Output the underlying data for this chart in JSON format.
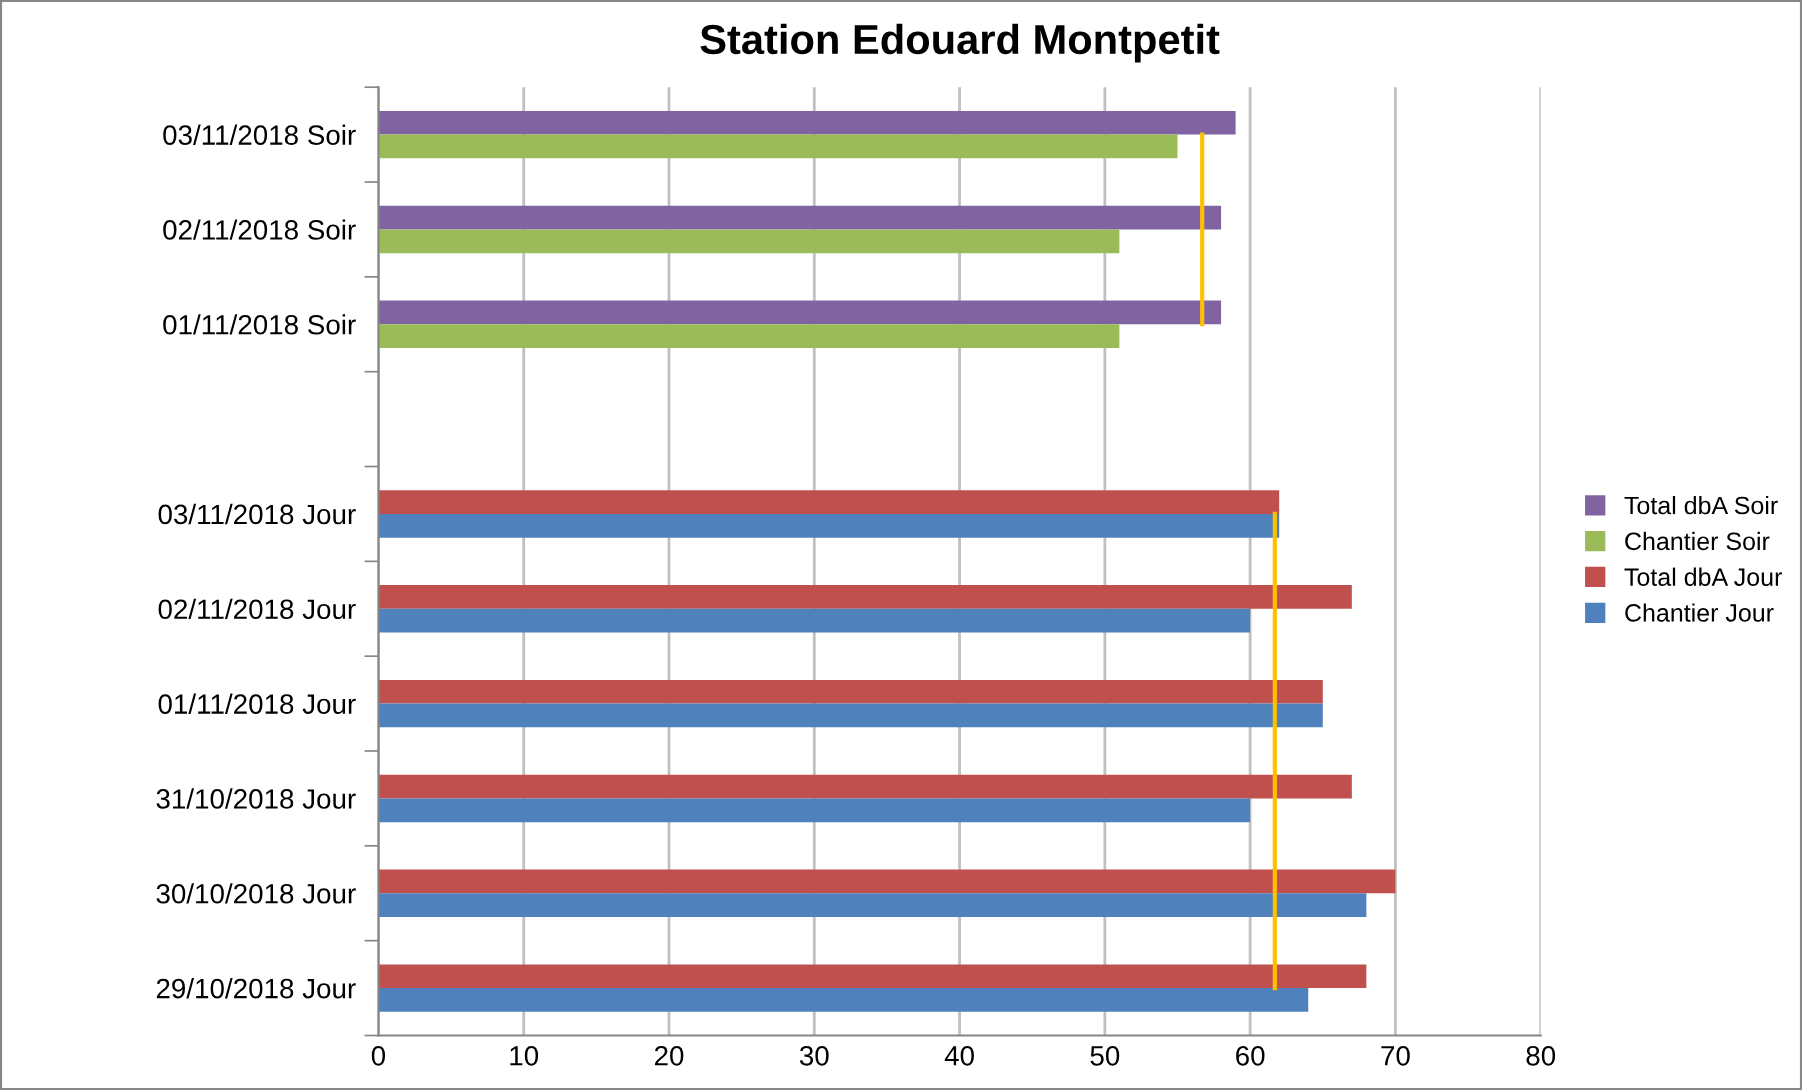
{
  "chart_data": {
    "type": "bar",
    "orientation": "horizontal",
    "title": "Station Edouard Montpetit",
    "categories": [
      "03/11/2018 Soir",
      "02/11/2018 Soir",
      "01/11/2018 Soir",
      null,
      "03/11/2018 Jour",
      "02/11/2018 Jour",
      "01/11/2018 Jour",
      "31/10/2018 Jour",
      "30/10/2018 Jour",
      "29/10/2018 Jour"
    ],
    "series": [
      {
        "name": "Total dbA Soir",
        "color": "#8064a2",
        "values": [
          59,
          58,
          58,
          null,
          null,
          null,
          null,
          null,
          null,
          null
        ]
      },
      {
        "name": "Chantier Soir",
        "color": "#9bbb59",
        "values": [
          55,
          51,
          51,
          null,
          null,
          null,
          null,
          null,
          null,
          null
        ]
      },
      {
        "name": "Total dbA Jour",
        "color": "#c0504d",
        "values": [
          null,
          null,
          null,
          null,
          62,
          67,
          65,
          67,
          70,
          68
        ]
      },
      {
        "name": "Chantier Jour",
        "color": "#4f81bd",
        "values": [
          null,
          null,
          null,
          null,
          62,
          60,
          65,
          60,
          68,
          64
        ]
      },
      {
        "type": "line",
        "color": "#ffc000",
        "values": [
          56.7,
          56.7,
          56.7,
          null,
          null,
          null,
          null,
          null,
          null,
          null
        ]
      },
      {
        "type": "line",
        "color": "#ffc000",
        "values": [
          null,
          null,
          null,
          null,
          61.7,
          61.7,
          61.7,
          61.7,
          61.7,
          61.7
        ]
      }
    ],
    "xlim": [
      0,
      80
    ],
    "xticks": [
      0,
      10,
      20,
      30,
      40,
      50,
      60,
      70,
      80
    ],
    "grid": "x",
    "legend": "right"
  }
}
